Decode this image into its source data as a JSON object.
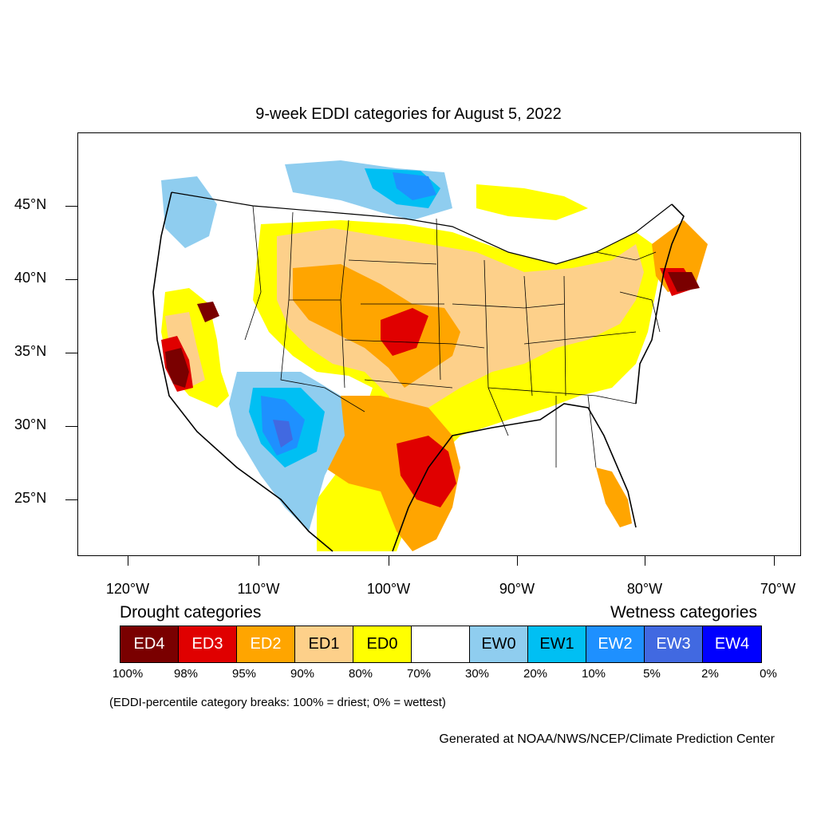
{
  "title": "9-week EDDI categories for August 5, 2022",
  "lat_labels": [
    "45°N",
    "40°N",
    "35°N",
    "30°N",
    "25°N"
  ],
  "lon_labels": [
    "120°W",
    "110°W",
    "100°W",
    "90°W",
    "80°W",
    "70°W"
  ],
  "legend": {
    "drought_heading": "Drought categories",
    "wetness_heading": "Wetness categories",
    "categories": [
      {
        "label": "ED4",
        "color": "#7a0000",
        "text_color": "#ffffff"
      },
      {
        "label": "ED3",
        "color": "#e00000",
        "text_color": "#ffffff"
      },
      {
        "label": "ED2",
        "color": "#ffa500",
        "text_color": "#ffffff"
      },
      {
        "label": "ED1",
        "color": "#fdd08a",
        "text_color": "#000000"
      },
      {
        "label": "ED0",
        "color": "#ffff00",
        "text_color": "#000000"
      },
      {
        "label": "",
        "color": "#ffffff",
        "text_color": "#000000"
      },
      {
        "label": "EW0",
        "color": "#8fcdef",
        "text_color": "#000000"
      },
      {
        "label": "EW1",
        "color": "#00bff3",
        "text_color": "#000000"
      },
      {
        "label": "EW2",
        "color": "#1e90ff",
        "text_color": "#ffffff"
      },
      {
        "label": "EW3",
        "color": "#4169e1",
        "text_color": "#ffffff"
      },
      {
        "label": "EW4",
        "color": "#0000ff",
        "text_color": "#ffffff"
      }
    ],
    "percentiles": [
      "100%",
      "98%",
      "95%",
      "90%",
      "80%",
      "70%",
      "30%",
      "20%",
      "10%",
      "5%",
      "2%",
      "0%"
    ]
  },
  "note": "(EDDI-percentile category breaks: 100% = driest; 0% = wettest)",
  "credit": "Generated at NOAA/NWS/NCEP/Climate Prediction Center"
}
